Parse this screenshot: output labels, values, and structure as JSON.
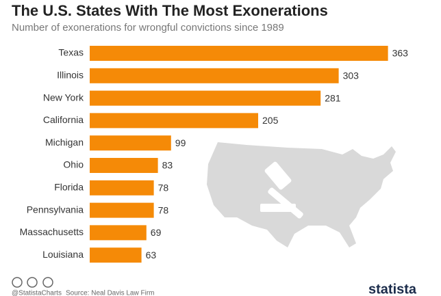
{
  "chart_data": {
    "type": "bar",
    "orientation": "horizontal",
    "title": "The U.S. States With The Most Exonerations",
    "subtitle": "Number of exonerations for wrongful convictions since 1989",
    "categories": [
      "Texas",
      "Illinois",
      "New York",
      "California",
      "Michigan",
      "Ohio",
      "Florida",
      "Pennsylvania",
      "Massachusetts",
      "Louisiana"
    ],
    "values": [
      363,
      303,
      281,
      205,
      99,
      83,
      78,
      78,
      69,
      63
    ],
    "color": "#f58a07",
    "credit": "@StatistaCharts",
    "source": "Source: Neal Davis Law Firm",
    "brand": "statista"
  }
}
